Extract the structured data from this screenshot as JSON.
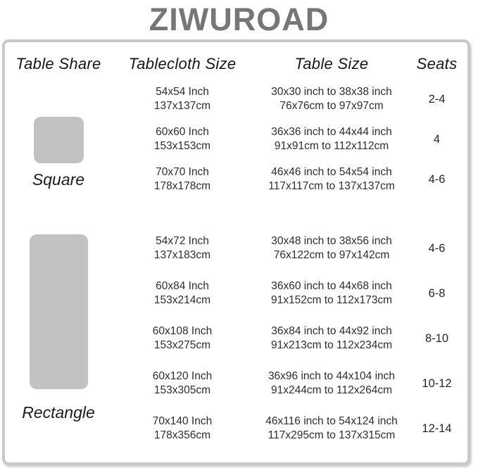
{
  "title": "ZIWUROAD",
  "chart_data": {
    "type": "table",
    "title": "ZIWUROAD",
    "columns": [
      "Table Share",
      "Tablecloth Size",
      "Table Size",
      "Seats"
    ],
    "groups": [
      {
        "shape": "square",
        "label": "Square",
        "rows": [
          {
            "cloth": [
              "54x54 Inch",
              "137x137cm"
            ],
            "size": [
              "30x30 inch to 38x38 inch",
              "76x76cm to 97x97cm"
            ],
            "seats": "2-4"
          },
          {
            "cloth": [
              "60x60 Inch",
              "153x153cm"
            ],
            "size": [
              "36x36 inch to 44x44 inch",
              "91x91cm to 112x112cm"
            ],
            "seats": "4"
          },
          {
            "cloth": [
              "70x70 Inch",
              "178x178cm"
            ],
            "size": [
              "46x46 inch to 54x54 inch",
              "117x117cm to 137x137cm"
            ],
            "seats": "4-6"
          }
        ]
      },
      {
        "shape": "rectangle",
        "label": "Rectangle",
        "rows": [
          {
            "cloth": [
              "54x72 Inch",
              "137x183cm"
            ],
            "size": [
              "30x48 inch to 38x56 inch",
              "76x122cm to 97x142cm"
            ],
            "seats": "4-6"
          },
          {
            "cloth": [
              "60x84 Inch",
              "153x214cm"
            ],
            "size": [
              "36x60 inch to 44x68 inch",
              "91x152cm to 112x173cm"
            ],
            "seats": "6-8"
          },
          {
            "cloth": [
              "60x108 Inch",
              "153x275cm"
            ],
            "size": [
              "36x84 inch to 44x92 inch",
              "91x213cm to 112x234cm"
            ],
            "seats": "8-10"
          },
          {
            "cloth": [
              "60x120 Inch",
              "153x305cm"
            ],
            "size": [
              "36x96 inch to 44x104 inch",
              "91x244cm to 112x264cm"
            ],
            "seats": "10-12"
          },
          {
            "cloth": [
              "70x140 Inch",
              "178x356cm"
            ],
            "size": [
              "46x116 inch to 54x124 inch",
              "117x295cm to 137x315cm"
            ],
            "seats": "12-14"
          }
        ]
      }
    ]
  },
  "colors": {
    "brand_gray": "#767676",
    "card_border": "#c9c9c9",
    "shape_fill": "#c2c2c2",
    "body_text": "#2d2d2d"
  }
}
